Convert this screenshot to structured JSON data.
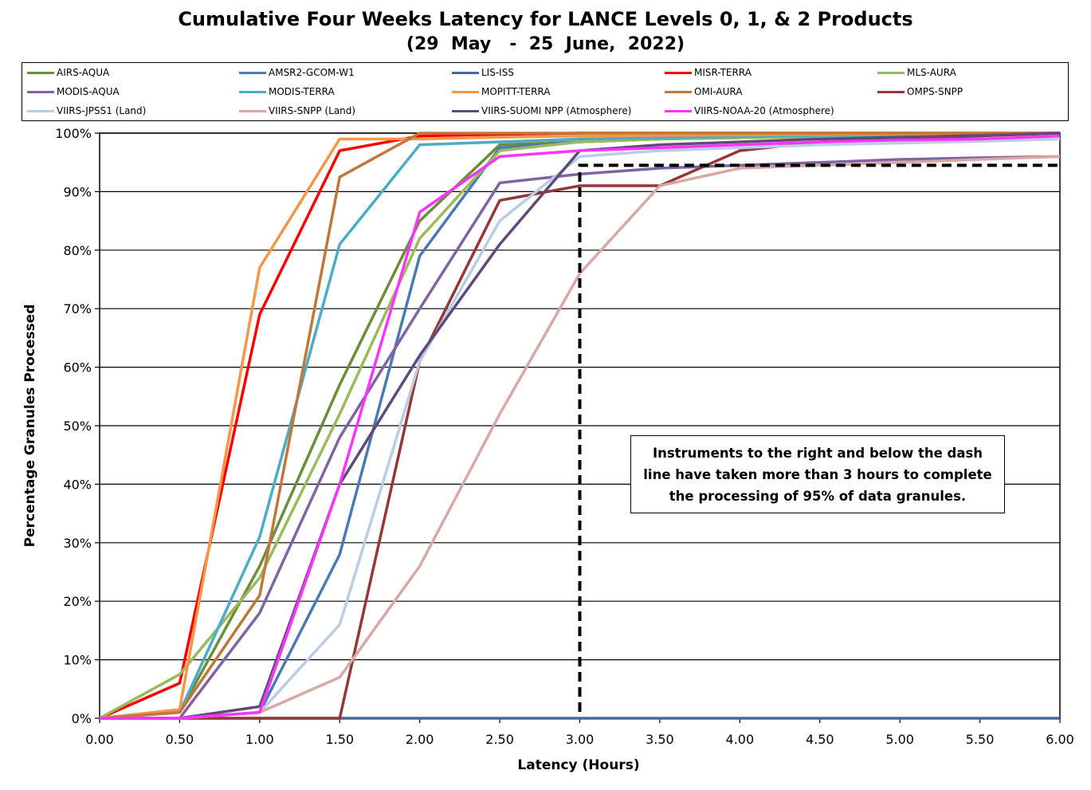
{
  "chart_data": {
    "type": "line",
    "title": "Cumulative Four Weeks Latency  for LANCE Levels 0, 1, & 2 Products",
    "subtitle": "(29  May   -  25  June,  2022)",
    "xlabel": "Latency (Hours)",
    "ylabel": "Percentage Granules Processed",
    "xlim": [
      0,
      6
    ],
    "ylim": [
      0,
      100
    ],
    "x_ticks": [
      "0.00",
      "0.50",
      "1.00",
      "1.50",
      "2.00",
      "2.50",
      "3.00",
      "3.50",
      "4.00",
      "4.50",
      "5.00",
      "5.50",
      "6.00"
    ],
    "y_ticks": [
      "0%",
      "10%",
      "20%",
      "30%",
      "40%",
      "50%",
      "60%",
      "70%",
      "80%",
      "90%",
      "100%"
    ],
    "grid": "horizontal",
    "legend_position": "top",
    "x": [
      0,
      0.5,
      1.0,
      1.5,
      2.0,
      2.5,
      3.0,
      3.5,
      4.0,
      4.5,
      5.0,
      5.5,
      6.0
    ],
    "series": [
      {
        "name": "AIRS-AQUA",
        "color": "#6b8e3a",
        "values": [
          0,
          1,
          26,
          57,
          85,
          98,
          98.5,
          99,
          99.2,
          99.4,
          99.6,
          99.8,
          100
        ]
      },
      {
        "name": "AMSR2-GCOM-W1",
        "color": "#4a7ab5",
        "values": [
          0,
          0,
          1,
          28,
          79,
          97.5,
          98.5,
          99,
          99.3,
          99.5,
          99.6,
          99.8,
          100
        ]
      },
      {
        "name": "LIS-ISS",
        "color": "#3d6da3",
        "values": [
          0,
          0,
          0,
          0,
          0,
          0,
          0,
          0,
          0,
          0,
          0,
          0,
          0
        ]
      },
      {
        "name": "MISR-TERRA",
        "color": "#ff0000",
        "values": [
          0,
          6,
          69,
          97,
          99.5,
          99.8,
          100,
          100,
          100,
          100,
          100,
          100,
          100
        ]
      },
      {
        "name": "MLS-AURA",
        "color": "#9bbb59",
        "values": [
          0,
          7.5,
          24,
          52,
          82,
          97,
          98.5,
          99,
          99.2,
          99.4,
          99.6,
          99.8,
          100
        ]
      },
      {
        "name": "MODIS-AQUA",
        "color": "#8064a2",
        "values": [
          0,
          0,
          18,
          48,
          70,
          91.5,
          93,
          94,
          94.5,
          95,
          95.5,
          95.8,
          96
        ]
      },
      {
        "name": "MODIS-TERRA",
        "color": "#4bacc6",
        "values": [
          0,
          1,
          31,
          81,
          98,
          98.5,
          99,
          99.2,
          99.4,
          99.6,
          99.7,
          99.8,
          100
        ]
      },
      {
        "name": "MOPITT-TERRA",
        "color": "#f79646",
        "values": [
          0,
          1.5,
          77,
          99,
          99,
          99.3,
          99.5,
          99.6,
          99.7,
          99.8,
          99.9,
          99.9,
          100
        ]
      },
      {
        "name": "OMI-AURA",
        "color": "#c0783a",
        "values": [
          0,
          1,
          21,
          92.5,
          100,
          100,
          100,
          100,
          100,
          100,
          100,
          100,
          100
        ]
      },
      {
        "name": "OMPS-SNPP",
        "color": "#953735",
        "values": [
          0,
          0,
          0,
          0,
          61,
          88.5,
          91,
          91,
          97,
          98.5,
          99,
          99.5,
          100
        ]
      },
      {
        "name": "VIIRS-JPSS1 (Land)",
        "color": "#b9cde5",
        "values": [
          0,
          0,
          1,
          16,
          61,
          85,
          96,
          97,
          97.5,
          98,
          98.3,
          98.6,
          99
        ]
      },
      {
        "name": "VIIRS-SNPP (Land)",
        "color": "#d9a8a5",
        "values": [
          0,
          0,
          1,
          7,
          26,
          52,
          76,
          91,
          94,
          94.5,
          95,
          95.5,
          96
        ]
      },
      {
        "name": "VIIRS-SUOMI NPP (Atmosphere)",
        "color": "#604a7b",
        "values": [
          0,
          0,
          2,
          40,
          62,
          81,
          97,
          98,
          98.5,
          99,
          99.3,
          99.6,
          100
        ]
      },
      {
        "name": "VIIRS-NOAA-20 (Atmosphere)",
        "color": "#ff33ff",
        "values": [
          0,
          0,
          1,
          40,
          86.5,
          96,
          97,
          97.5,
          98,
          98.5,
          98.8,
          99,
          99.5
        ]
      }
    ],
    "reference_line": {
      "x": 3.0,
      "y": 94.5,
      "style": "dashed",
      "color": "#000000"
    },
    "annotation": "Instruments to the right and below the dash line have taken more than 3 hours to complete the processing of 95% of data granules."
  }
}
